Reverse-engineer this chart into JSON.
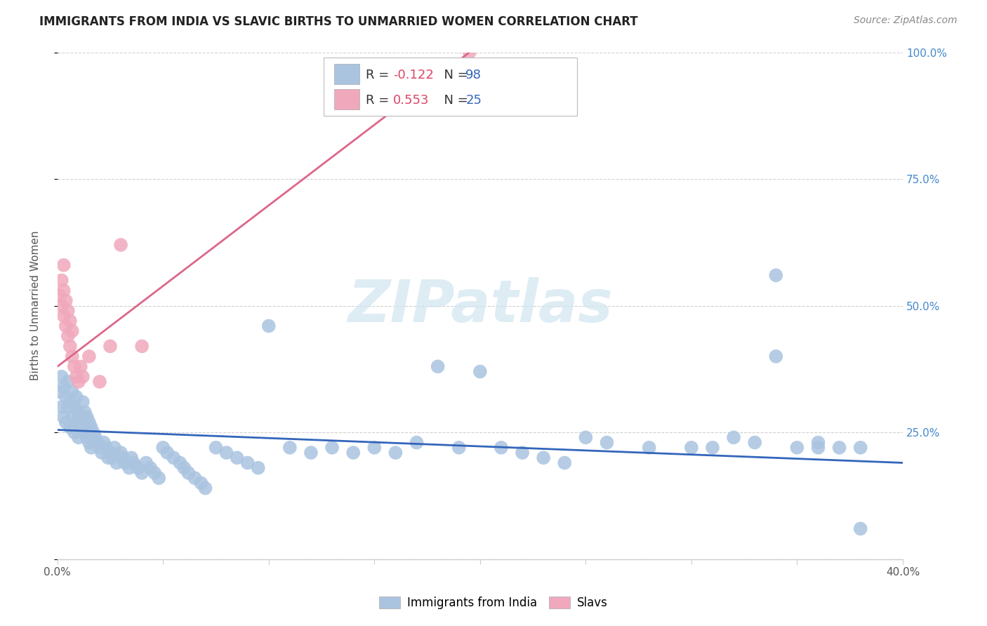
{
  "title": "IMMIGRANTS FROM INDIA VS SLAVIC BIRTHS TO UNMARRIED WOMEN CORRELATION CHART",
  "source": "Source: ZipAtlas.com",
  "ylabel": "Births to Unmarried Women",
  "xmin": 0.0,
  "xmax": 0.4,
  "ymin": 0.0,
  "ymax": 1.0,
  "yticks": [
    0.0,
    0.25,
    0.5,
    0.75,
    1.0
  ],
  "ytick_labels": [
    "",
    "25.0%",
    "50.0%",
    "75.0%",
    "100.0%"
  ],
  "xticks": [
    0.0,
    0.05,
    0.1,
    0.15,
    0.2,
    0.25,
    0.3,
    0.35,
    0.4
  ],
  "blue_color": "#aac4e0",
  "pink_color": "#f0a8bc",
  "blue_line_color": "#3366bb",
  "pink_line_color": "#dd6688",
  "watermark_color": "#d0e4f0",
  "blue_scatter_x": [
    0.001,
    0.002,
    0.002,
    0.003,
    0.003,
    0.004,
    0.004,
    0.005,
    0.005,
    0.006,
    0.006,
    0.007,
    0.007,
    0.008,
    0.008,
    0.009,
    0.009,
    0.01,
    0.01,
    0.011,
    0.012,
    0.012,
    0.013,
    0.013,
    0.014,
    0.014,
    0.015,
    0.015,
    0.016,
    0.016,
    0.017,
    0.018,
    0.019,
    0.02,
    0.021,
    0.022,
    0.023,
    0.024,
    0.025,
    0.026,
    0.027,
    0.028,
    0.03,
    0.031,
    0.032,
    0.034,
    0.035,
    0.036,
    0.038,
    0.04,
    0.042,
    0.044,
    0.046,
    0.048,
    0.05,
    0.052,
    0.055,
    0.058,
    0.06,
    0.062,
    0.065,
    0.068,
    0.07,
    0.075,
    0.08,
    0.085,
    0.09,
    0.095,
    0.1,
    0.11,
    0.12,
    0.13,
    0.14,
    0.15,
    0.16,
    0.17,
    0.18,
    0.19,
    0.2,
    0.21,
    0.22,
    0.23,
    0.24,
    0.25,
    0.26,
    0.28,
    0.3,
    0.31,
    0.32,
    0.33,
    0.34,
    0.35,
    0.36,
    0.37,
    0.38,
    0.34,
    0.36,
    0.38
  ],
  "blue_scatter_y": [
    0.33,
    0.3,
    0.36,
    0.28,
    0.34,
    0.27,
    0.32,
    0.3,
    0.35,
    0.26,
    0.31,
    0.28,
    0.33,
    0.25,
    0.3,
    0.27,
    0.32,
    0.24,
    0.29,
    0.26,
    0.28,
    0.31,
    0.25,
    0.29,
    0.24,
    0.28,
    0.23,
    0.27,
    0.22,
    0.26,
    0.25,
    0.24,
    0.23,
    0.22,
    0.21,
    0.23,
    0.22,
    0.2,
    0.21,
    0.2,
    0.22,
    0.19,
    0.21,
    0.2,
    0.19,
    0.18,
    0.2,
    0.19,
    0.18,
    0.17,
    0.19,
    0.18,
    0.17,
    0.16,
    0.22,
    0.21,
    0.2,
    0.19,
    0.18,
    0.17,
    0.16,
    0.15,
    0.14,
    0.22,
    0.21,
    0.2,
    0.19,
    0.18,
    0.46,
    0.22,
    0.21,
    0.22,
    0.21,
    0.22,
    0.21,
    0.23,
    0.38,
    0.22,
    0.37,
    0.22,
    0.21,
    0.2,
    0.19,
    0.24,
    0.23,
    0.22,
    0.22,
    0.22,
    0.24,
    0.23,
    0.56,
    0.22,
    0.23,
    0.22,
    0.22,
    0.4,
    0.22,
    0.06
  ],
  "pink_scatter_x": [
    0.001,
    0.002,
    0.002,
    0.003,
    0.003,
    0.003,
    0.004,
    0.004,
    0.005,
    0.005,
    0.006,
    0.006,
    0.007,
    0.007,
    0.008,
    0.009,
    0.01,
    0.011,
    0.012,
    0.015,
    0.02,
    0.025,
    0.03,
    0.04,
    0.195
  ],
  "pink_scatter_y": [
    0.52,
    0.5,
    0.55,
    0.48,
    0.53,
    0.58,
    0.46,
    0.51,
    0.44,
    0.49,
    0.42,
    0.47,
    0.4,
    0.45,
    0.38,
    0.36,
    0.35,
    0.38,
    0.36,
    0.4,
    0.35,
    0.42,
    0.62,
    0.42,
    1.0
  ],
  "blue_line_x": [
    0.0,
    0.4
  ],
  "blue_line_y": [
    0.255,
    0.19
  ],
  "pink_line_x": [
    0.0,
    0.195
  ],
  "pink_line_y": [
    0.38,
    1.0
  ]
}
